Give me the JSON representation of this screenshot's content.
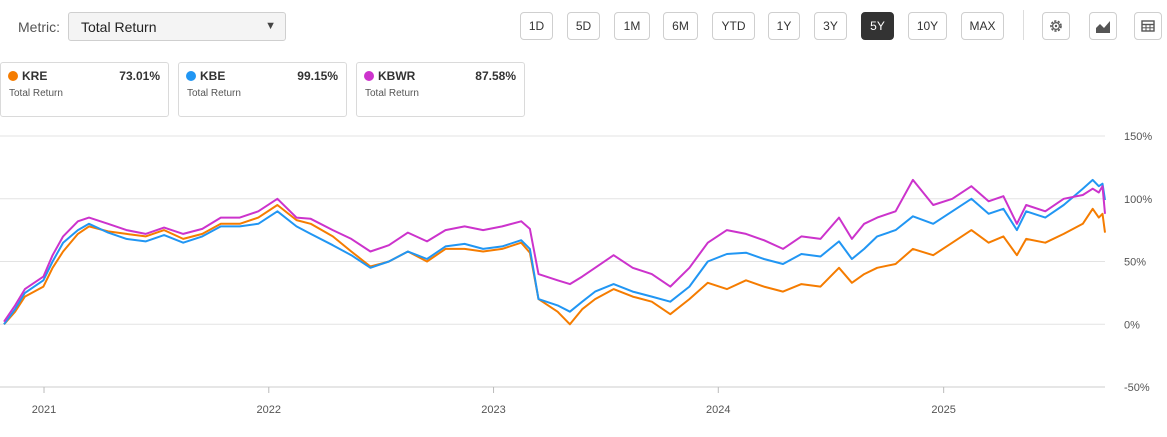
{
  "toolbar": {
    "metric_label": "Metric:",
    "metric_value": "Total Return",
    "ranges": [
      "1D",
      "5D",
      "1M",
      "6M",
      "YTD",
      "1Y",
      "3Y",
      "5Y",
      "10Y",
      "MAX"
    ],
    "active_range": "5Y",
    "tools": [
      "settings-icon",
      "chart-type-icon",
      "table-icon"
    ]
  },
  "legend": [
    {
      "ticker": "KRE",
      "value": "73.01%",
      "metric": "Total Return",
      "color": "#f57c00"
    },
    {
      "ticker": "KBE",
      "value": "99.15%",
      "metric": "Total Return",
      "color": "#2196f3"
    },
    {
      "ticker": "KBWR",
      "value": "87.58%",
      "metric": "Total Return",
      "color": "#cc33cc"
    }
  ],
  "chart_data": {
    "type": "line",
    "x_tick_labels": [
      "2021",
      "2022",
      "2023",
      "2024",
      "2025"
    ],
    "y_tick_labels": [
      "150%",
      "100%",
      "50%",
      "0%",
      "-50%"
    ],
    "ylim": [
      -50,
      150
    ],
    "grid": true,
    "x": [
      "2020-10-28",
      "2020-11-15",
      "2020-12-01",
      "2020-12-31",
      "2021-01-15",
      "2021-02-01",
      "2021-02-25",
      "2021-03-15",
      "2021-04-15",
      "2021-05-15",
      "2021-06-15",
      "2021-07-15",
      "2021-08-15",
      "2021-09-15",
      "2021-10-15",
      "2021-11-15",
      "2021-12-15",
      "2022-01-15",
      "2022-02-15",
      "2022-03-10",
      "2022-04-15",
      "2022-05-15",
      "2022-06-15",
      "2022-07-15",
      "2022-08-15",
      "2022-09-15",
      "2022-10-15",
      "2022-11-15",
      "2022-12-15",
      "2023-01-15",
      "2023-02-15",
      "2023-03-01",
      "2023-03-15",
      "2023-04-15",
      "2023-05-05",
      "2023-05-25",
      "2023-06-15",
      "2023-07-15",
      "2023-08-15",
      "2023-09-15",
      "2023-10-15",
      "2023-11-15",
      "2023-12-15",
      "2024-01-15",
      "2024-02-15",
      "2024-03-15",
      "2024-04-15",
      "2024-05-15",
      "2024-06-15",
      "2024-07-15",
      "2024-08-05",
      "2024-08-25",
      "2024-09-15",
      "2024-10-15",
      "2024-11-12",
      "2024-12-15",
      "2025-01-15",
      "2025-02-15",
      "2025-03-15",
      "2025-04-08",
      "2025-04-30",
      "2025-05-15",
      "2025-06-15",
      "2025-07-15",
      "2025-08-15",
      "2025-08-31",
      "2025-09-10",
      "2025-09-16",
      "2025-09-20"
    ],
    "series": [
      {
        "name": "KRE",
        "color": "#f57c00",
        "values": [
          0,
          10,
          22,
          30,
          45,
          58,
          72,
          78,
          74,
          72,
          70,
          75,
          68,
          72,
          80,
          80,
          85,
          95,
          83,
          80,
          70,
          58,
          46,
          50,
          58,
          50,
          60,
          60,
          58,
          60,
          65,
          57,
          20,
          10,
          0,
          12,
          20,
          28,
          22,
          18,
          8,
          20,
          33,
          28,
          35,
          30,
          26,
          32,
          30,
          45,
          33,
          40,
          45,
          48,
          60,
          55,
          65,
          75,
          65,
          70,
          55,
          68,
          65,
          72,
          80,
          92,
          85,
          88,
          73
        ]
      },
      {
        "name": "KBE",
        "color": "#2196f3",
        "values": [
          0,
          12,
          25,
          35,
          50,
          65,
          75,
          80,
          73,
          68,
          66,
          71,
          65,
          70,
          78,
          78,
          80,
          90,
          78,
          72,
          63,
          55,
          45,
          50,
          58,
          52,
          62,
          64,
          60,
          62,
          67,
          60,
          20,
          15,
          10,
          18,
          26,
          32,
          26,
          22,
          18,
          30,
          50,
          56,
          57,
          52,
          48,
          56,
          54,
          66,
          52,
          60,
          70,
          75,
          86,
          80,
          90,
          100,
          88,
          92,
          75,
          90,
          85,
          95,
          108,
          115,
          110,
          112,
          99
        ]
      },
      {
        "name": "KBWR",
        "color": "#cc33cc",
        "values": [
          2,
          15,
          28,
          38,
          55,
          70,
          82,
          85,
          80,
          75,
          72,
          77,
          72,
          76,
          85,
          85,
          90,
          100,
          85,
          84,
          75,
          68,
          58,
          63,
          73,
          66,
          75,
          78,
          75,
          78,
          82,
          76,
          40,
          35,
          32,
          38,
          45,
          55,
          45,
          40,
          30,
          45,
          65,
          75,
          72,
          67,
          60,
          70,
          68,
          85,
          68,
          80,
          85,
          90,
          115,
          95,
          100,
          110,
          98,
          102,
          80,
          95,
          90,
          100,
          103,
          108,
          105,
          110,
          88
        ]
      }
    ]
  }
}
